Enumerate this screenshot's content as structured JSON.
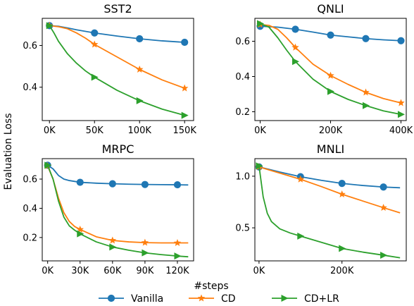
{
  "figure": {
    "ylabel": "Evaluation Loss",
    "xlabel": "#steps",
    "legend_placement": "bottom-center",
    "legend": [
      {
        "name": "Vanilla",
        "color": "#1f77b4",
        "marker": "circle"
      },
      {
        "name": "CD",
        "color": "#ff7f0e",
        "marker": "star"
      },
      {
        "name": "CD+LR",
        "color": "#2ca02c",
        "marker": "triangle-right"
      }
    ]
  },
  "chart_data": [
    {
      "type": "line",
      "title": "SST2",
      "xlim": [
        -8000,
        160000
      ],
      "ylim": [
        0.24,
        0.73
      ],
      "xticks": [
        0,
        50000,
        100000,
        150000
      ],
      "xtick_labels": [
        "0K",
        "50K",
        "100K",
        "150K"
      ],
      "yticks": [
        0.4,
        0.6
      ],
      "ytick_labels": [
        "0.4",
        "0.6"
      ],
      "series": [
        {
          "name": "Vanilla",
          "color": "#1f77b4",
          "marker": "circle",
          "x": [
            0,
            10000,
            20000,
            30000,
            50000,
            75000,
            100000,
            125000,
            150000
          ],
          "y": [
            0.695,
            0.692,
            0.684,
            0.675,
            0.66,
            0.645,
            0.632,
            0.622,
            0.615
          ]
        },
        {
          "name": "CD",
          "color": "#ff7f0e",
          "marker": "star",
          "x": [
            0,
            10000,
            20000,
            30000,
            40000,
            50000,
            75000,
            100000,
            125000,
            150000
          ],
          "y": [
            0.695,
            0.69,
            0.68,
            0.66,
            0.635,
            0.605,
            0.545,
            0.485,
            0.435,
            0.395
          ]
        },
        {
          "name": "CD+LR",
          "color": "#2ca02c",
          "marker": "triangle-right",
          "x": [
            0,
            5000,
            10000,
            20000,
            30000,
            40000,
            50000,
            75000,
            100000,
            125000,
            150000
          ],
          "y": [
            0.695,
            0.66,
            0.62,
            0.56,
            0.515,
            0.478,
            0.448,
            0.385,
            0.335,
            0.295,
            0.265
          ]
        }
      ],
      "marker_x": [
        0,
        50000,
        100000,
        150000
      ]
    },
    {
      "type": "line",
      "title": "QNLI",
      "xlim": [
        -15000,
        415000
      ],
      "ylim": [
        0.15,
        0.73
      ],
      "xticks": [
        0,
        200000,
        400000
      ],
      "xtick_labels": [
        "0K",
        "200K",
        "400K"
      ],
      "yticks": [
        0.2,
        0.4,
        0.6
      ],
      "ytick_labels": [
        "0.2",
        "0.4",
        "0.6"
      ],
      "series": [
        {
          "name": "Vanilla",
          "color": "#1f77b4",
          "marker": "circle",
          "x": [
            0,
            50000,
            100000,
            150000,
            200000,
            250000,
            300000,
            350000,
            400000
          ],
          "y": [
            0.685,
            0.68,
            0.668,
            0.652,
            0.635,
            0.625,
            0.615,
            0.608,
            0.603
          ]
        },
        {
          "name": "CD",
          "color": "#ff7f0e",
          "marker": "star",
          "x": [
            0,
            25000,
            50000,
            75000,
            100000,
            150000,
            200000,
            250000,
            300000,
            350000,
            400000
          ],
          "y": [
            0.695,
            0.69,
            0.668,
            0.62,
            0.565,
            0.47,
            0.405,
            0.355,
            0.31,
            0.275,
            0.25
          ]
        },
        {
          "name": "CD+LR",
          "color": "#2ca02c",
          "marker": "triangle-right",
          "x": [
            0,
            25000,
            50000,
            75000,
            100000,
            150000,
            200000,
            250000,
            300000,
            350000,
            400000
          ],
          "y": [
            0.7,
            0.68,
            0.62,
            0.55,
            0.485,
            0.385,
            0.315,
            0.27,
            0.235,
            0.205,
            0.185
          ]
        }
      ],
      "marker_x": [
        0,
        100000,
        200000,
        300000,
        400000
      ]
    },
    {
      "type": "line",
      "title": "MRPC",
      "xlim": [
        -5000,
        135000
      ],
      "ylim": [
        0.04,
        0.74
      ],
      "xticks": [
        0,
        30000,
        60000,
        90000,
        120000
      ],
      "xtick_labels": [
        "0K",
        "30K",
        "60K",
        "90K",
        "120K"
      ],
      "yticks": [
        0.2,
        0.4,
        0.6
      ],
      "ytick_labels": [
        "0.2",
        "0.4",
        "0.6"
      ],
      "series": [
        {
          "name": "Vanilla",
          "color": "#1f77b4",
          "marker": "circle",
          "x": [
            0,
            5000,
            10000,
            15000,
            20000,
            30000,
            45000,
            60000,
            75000,
            90000,
            105000,
            120000,
            130000
          ],
          "y": [
            0.695,
            0.67,
            0.625,
            0.6,
            0.59,
            0.578,
            0.572,
            0.568,
            0.565,
            0.563,
            0.562,
            0.561,
            0.56
          ]
        },
        {
          "name": "CD",
          "color": "#ff7f0e",
          "marker": "star",
          "x": [
            0,
            5000,
            10000,
            15000,
            20000,
            25000,
            30000,
            45000,
            60000,
            75000,
            90000,
            105000,
            120000,
            130000
          ],
          "y": [
            0.69,
            0.6,
            0.47,
            0.37,
            0.31,
            0.275,
            0.255,
            0.205,
            0.18,
            0.17,
            0.165,
            0.163,
            0.163,
            0.163
          ]
        },
        {
          "name": "CD+LR",
          "color": "#2ca02c",
          "marker": "triangle-right",
          "x": [
            0,
            5000,
            10000,
            15000,
            20000,
            25000,
            30000,
            45000,
            60000,
            75000,
            90000,
            105000,
            120000,
            130000
          ],
          "y": [
            0.695,
            0.6,
            0.45,
            0.34,
            0.28,
            0.25,
            0.225,
            0.17,
            0.135,
            0.113,
            0.095,
            0.083,
            0.073,
            0.068
          ]
        }
      ],
      "marker_x": [
        0,
        30000,
        60000,
        90000,
        120000
      ]
    },
    {
      "type": "line",
      "title": "MNLI",
      "xlim": [
        -10000,
        355000
      ],
      "ylim": [
        0.18,
        1.17
      ],
      "xticks": [
        0,
        200000
      ],
      "xtick_labels": [
        "0K",
        "200K"
      ],
      "yticks": [
        0.5,
        1.0
      ],
      "ytick_labels": [
        "0.5",
        "1.0"
      ],
      "series": [
        {
          "name": "Vanilla",
          "color": "#1f77b4",
          "marker": "circle",
          "x": [
            0,
            50000,
            100000,
            150000,
            200000,
            250000,
            300000,
            340000
          ],
          "y": [
            1.09,
            1.04,
            0.995,
            0.96,
            0.93,
            0.91,
            0.895,
            0.888
          ]
        },
        {
          "name": "CD",
          "color": "#ff7f0e",
          "marker": "star",
          "x": [
            0,
            50000,
            100000,
            150000,
            200000,
            250000,
            300000,
            340000
          ],
          "y": [
            1.09,
            1.03,
            0.97,
            0.9,
            0.825,
            0.76,
            0.695,
            0.645
          ]
        },
        {
          "name": "CD+LR",
          "color": "#2ca02c",
          "marker": "triangle-right",
          "x": [
            0,
            10000,
            20000,
            30000,
            50000,
            75000,
            100000,
            150000,
            200000,
            250000,
            300000,
            340000
          ],
          "y": [
            1.1,
            0.8,
            0.64,
            0.56,
            0.49,
            0.45,
            0.42,
            0.36,
            0.3,
            0.265,
            0.235,
            0.21
          ]
        }
      ],
      "marker_x": [
        0,
        100000,
        200000,
        300000
      ]
    }
  ]
}
